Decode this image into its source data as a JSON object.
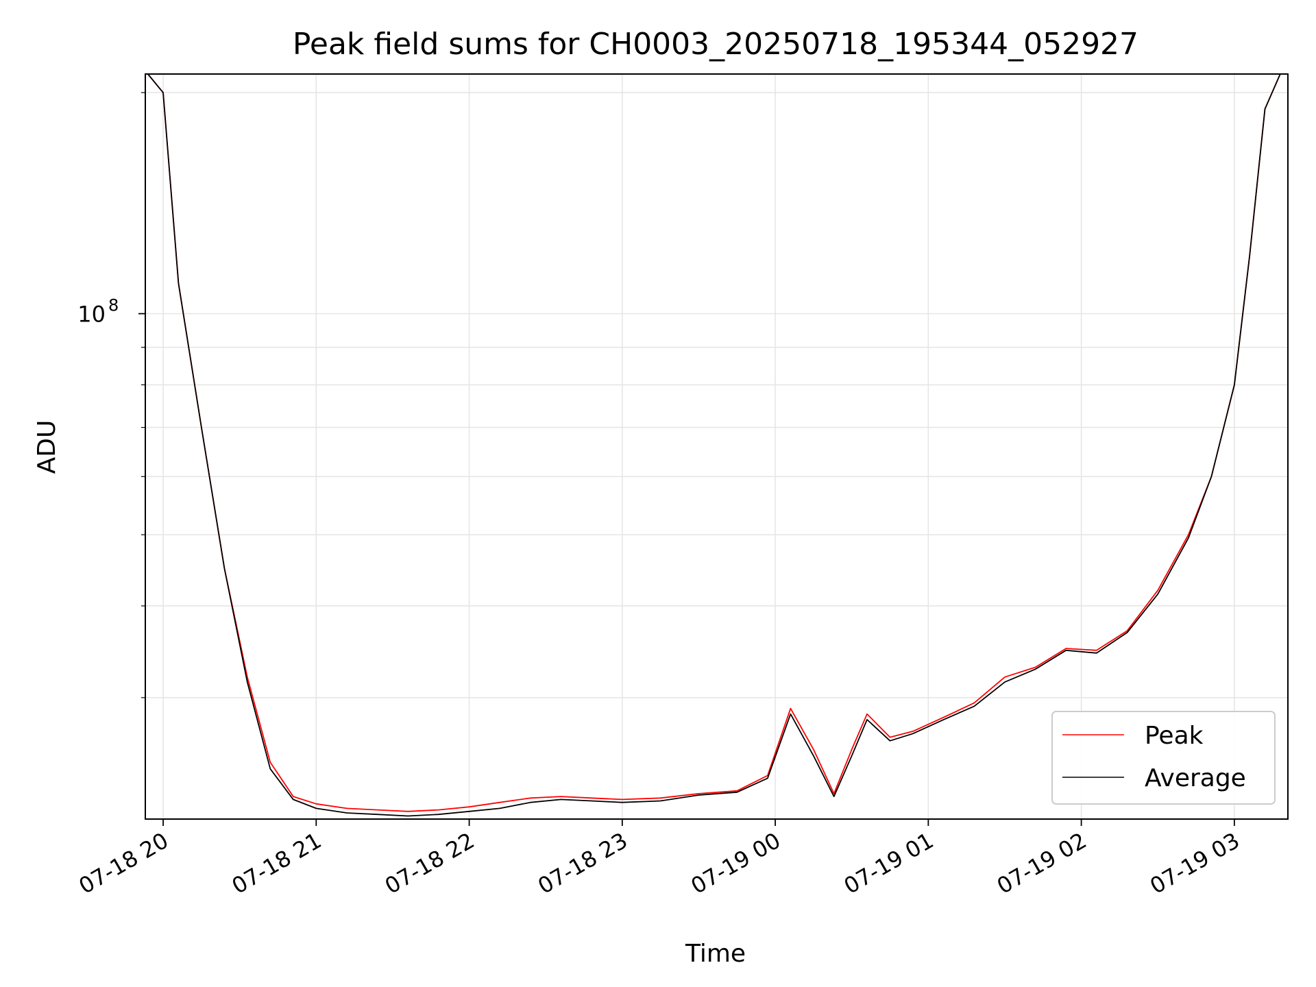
{
  "chart_data": {
    "type": "line",
    "title": "Peak field sums for CH0003_20250718_195344_052927",
    "xlabel": "Time",
    "ylabel": "ADU",
    "yscale": "log",
    "ylim": [
      20500000,
      212000000
    ],
    "xlim": [
      "2025-07-18 19:53",
      "2025-07-19 03:21"
    ],
    "grid": true,
    "legend_position": "lower-right",
    "x_ticks": [
      "07-18 20",
      "07-18 21",
      "07-18 22",
      "07-18 23",
      "07-19 00",
      "07-19 01",
      "07-19 02",
      "07-19 03"
    ],
    "y_tick_label": {
      "base": "10",
      "exponent": "8",
      "value": 100000000
    },
    "x": [
      "2025-07-18 19:54",
      "2025-07-18 20:00",
      "2025-07-18 20:06",
      "2025-07-18 20:15",
      "2025-07-18 20:24",
      "2025-07-18 20:33",
      "2025-07-18 20:42",
      "2025-07-18 20:51",
      "2025-07-18 21:00",
      "2025-07-18 21:12",
      "2025-07-18 21:24",
      "2025-07-18 21:36",
      "2025-07-18 21:48",
      "2025-07-18 22:00",
      "2025-07-18 22:12",
      "2025-07-18 22:24",
      "2025-07-18 22:36",
      "2025-07-18 22:48",
      "2025-07-18 23:00",
      "2025-07-18 23:15",
      "2025-07-18 23:30",
      "2025-07-18 23:45",
      "2025-07-18 23:57",
      "2025-07-19 00:06",
      "2025-07-19 00:15",
      "2025-07-19 00:23",
      "2025-07-19 00:30",
      "2025-07-19 00:36",
      "2025-07-19 00:45",
      "2025-07-19 00:54",
      "2025-07-19 01:06",
      "2025-07-19 01:18",
      "2025-07-19 01:30",
      "2025-07-19 01:42",
      "2025-07-19 01:54",
      "2025-07-19 02:06",
      "2025-07-19 02:18",
      "2025-07-19 02:30",
      "2025-07-19 02:42",
      "2025-07-19 02:51",
      "2025-07-19 03:00",
      "2025-07-19 03:06",
      "2025-07-19 03:12",
      "2025-07-19 03:18"
    ],
    "series": [
      {
        "name": "Peak",
        "color": "#ff0000",
        "values": [
          212000000,
          200000000,
          110000000,
          70000000,
          45000000,
          32000000,
          24500000,
          22000000,
          21500000,
          21200000,
          21100000,
          21000000,
          21100000,
          21300000,
          21600000,
          21900000,
          22000000,
          21900000,
          21800000,
          21900000,
          22200000,
          22400000,
          23500000,
          29000000,
          25500000,
          22200000,
          25500000,
          28500000,
          26500000,
          27000000,
          28200000,
          29500000,
          32000000,
          33000000,
          35000000,
          34800000,
          37000000,
          42000000,
          50000000,
          60000000,
          80000000,
          120000000,
          190000000,
          212000000
        ]
      },
      {
        "name": "Average",
        "color": "#000000",
        "values": [
          212000000,
          200000000,
          110000000,
          70000000,
          45000000,
          31500000,
          24000000,
          21800000,
          21200000,
          20900000,
          20800000,
          20700000,
          20800000,
          21000000,
          21200000,
          21600000,
          21800000,
          21700000,
          21600000,
          21700000,
          22100000,
          22300000,
          23300000,
          28500000,
          25000000,
          22000000,
          25000000,
          28000000,
          26200000,
          26800000,
          28000000,
          29200000,
          31500000,
          32800000,
          34800000,
          34500000,
          36800000,
          41500000,
          49500000,
          60000000,
          80000000,
          120000000,
          190000000,
          212000000
        ]
      }
    ]
  }
}
